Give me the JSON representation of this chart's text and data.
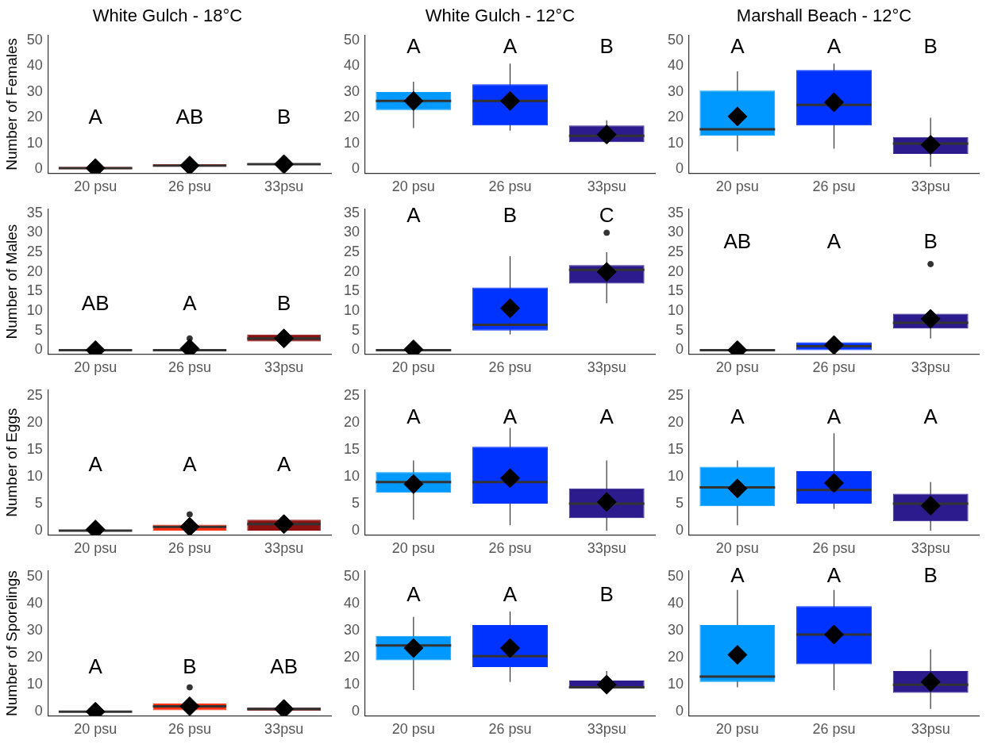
{
  "chart_data": [
    {
      "type": "box",
      "title": "White Gulch - 18°C",
      "ylabel": "Number of Females",
      "categories": [
        "20 psu",
        "26 psu",
        "33psu"
      ],
      "colors": [
        "#ff6a55",
        "#ff3010",
        "#8c1010"
      ],
      "ylim": [
        -1.5,
        52
      ],
      "yticks": [
        0,
        10,
        20,
        30,
        40,
        50
      ],
      "boxes": [
        {
          "low": 0,
          "q1": 0,
          "median": 0.5,
          "q3": 1,
          "high": 1,
          "mean": 0.5
        },
        {
          "low": 0,
          "q1": 1,
          "median": 1.5,
          "q3": 2,
          "high": 2,
          "mean": 1.5
        },
        {
          "low": 1.5,
          "q1": 1.8,
          "median": 2,
          "q3": 2.2,
          "high": 2.5,
          "mean": 2
        }
      ],
      "annotations": [
        "A",
        "AB",
        "B"
      ]
    },
    {
      "type": "box",
      "title": "White Gulch - 12°C",
      "categories": [
        "20 psu",
        "26 psu",
        "33psu"
      ],
      "colors": [
        "#0099ff",
        "#0033ff",
        "#2b1b8c"
      ],
      "ylim": [
        -1.5,
        52
      ],
      "yticks": [
        0,
        10,
        20,
        30,
        40,
        50
      ],
      "boxes": [
        {
          "low": 16,
          "q1": 23,
          "median": 26.5,
          "q3": 30,
          "high": 34,
          "mean": 26.5
        },
        {
          "low": 15,
          "q1": 17,
          "median": 26.5,
          "q3": 33,
          "high": 41,
          "mean": 26.5
        },
        {
          "low": 10,
          "q1": 10.5,
          "median": 13,
          "q3": 17,
          "high": 19,
          "mean": 13.5
        }
      ],
      "annotations": [
        "A",
        "A",
        "B"
      ]
    },
    {
      "type": "box",
      "title": "Marshall Beach - 12°C",
      "categories": [
        "20 psu",
        "26 psu",
        "33psu"
      ],
      "colors": [
        "#0099ff",
        "#0033ff",
        "#2b1b8c"
      ],
      "ylim": [
        -1.5,
        52
      ],
      "yticks": [
        0,
        10,
        20,
        30,
        40,
        50
      ],
      "boxes": [
        {
          "low": 7,
          "q1": 13,
          "median": 15.5,
          "q3": 30.5,
          "high": 38,
          "mean": 20.5
        },
        {
          "low": 8,
          "q1": 17,
          "median": 25,
          "q3": 38.5,
          "high": 41,
          "mean": 26
        },
        {
          "low": 1,
          "q1": 6,
          "median": 10,
          "q3": 12.5,
          "high": 20,
          "mean": 9.5
        }
      ],
      "annotations": [
        "A",
        "A",
        "B"
      ]
    },
    {
      "type": "box",
      "ylabel": "Number of Males",
      "categories": [
        "20 psu",
        "26 psu",
        "33psu"
      ],
      "colors": [
        "#333333",
        "#333333",
        "#8c1010"
      ],
      "ylim": [
        -1,
        36
      ],
      "yticks": [
        0,
        5,
        10,
        15,
        20,
        25,
        30,
        35
      ],
      "boxes": [
        {
          "low": 0,
          "q1": 0,
          "median": 0,
          "q3": 0,
          "high": 0,
          "mean": 0
        },
        {
          "low": 0,
          "q1": 0,
          "median": 0,
          "q3": 0,
          "high": 0,
          "mean": 0.4,
          "outliers": [
            3
          ]
        },
        {
          "low": 2,
          "q1": 2.2,
          "median": 3,
          "q3": 4,
          "high": 4,
          "mean": 3
        }
      ],
      "annotations": [
        "AB",
        "A",
        "B"
      ]
    },
    {
      "type": "box",
      "categories": [
        "20 psu",
        "26 psu",
        "33psu"
      ],
      "colors": [
        "#333333",
        "#0033ff",
        "#2b1b8c"
      ],
      "ylim": [
        -1,
        36
      ],
      "yticks": [
        0,
        5,
        10,
        15,
        20,
        25,
        30,
        35
      ],
      "boxes": [
        {
          "low": 0,
          "q1": 0,
          "median": 0,
          "q3": 0,
          "high": 0,
          "mean": 0.2
        },
        {
          "low": 4,
          "q1": 5,
          "median": 6.5,
          "q3": 16,
          "high": 24,
          "mean": 10.7
        },
        {
          "low": 12,
          "q1": 17,
          "median": 20.5,
          "q3": 21.7,
          "high": 25,
          "mean": 20,
          "outliers": [
            30
          ]
        }
      ],
      "annotations": [
        "A",
        "B",
        "C"
      ]
    },
    {
      "type": "box",
      "categories": [
        "20 psu",
        "26 psu",
        "33psu"
      ],
      "colors": [
        "#333333",
        "#0033ff",
        "#2b1b8c"
      ],
      "ylim": [
        -1,
        36
      ],
      "yticks": [
        0,
        5,
        10,
        15,
        20,
        25,
        30,
        35
      ],
      "boxes": [
        {
          "low": 0,
          "q1": 0,
          "median": 0,
          "q3": 0,
          "high": 0,
          "mean": 0
        },
        {
          "low": 0,
          "q1": 0,
          "median": 1,
          "q3": 2,
          "high": 2,
          "mean": 1.3
        },
        {
          "low": 3,
          "q1": 5.5,
          "median": 7,
          "q3": 9.3,
          "high": 9.3,
          "mean": 8,
          "outliers": [
            22
          ]
        }
      ],
      "annotations": [
        "AB",
        "A",
        "B"
      ]
    },
    {
      "type": "box",
      "ylabel": "Number of Eggs",
      "categories": [
        "20 psu",
        "26 psu",
        "33psu"
      ],
      "colors": [
        "#333333",
        "#ff3010",
        "#8c1010"
      ],
      "ylim": [
        -0.8,
        26
      ],
      "yticks": [
        0,
        5,
        10,
        15,
        20,
        25
      ],
      "boxes": [
        {
          "low": 0,
          "q1": 0,
          "median": 0,
          "q3": 0,
          "high": 0,
          "mean": 0.2
        },
        {
          "low": 0,
          "q1": 0,
          "median": 0.7,
          "q3": 1.1,
          "high": 1.1,
          "mean": 0.7,
          "outliers": [
            3
          ]
        },
        {
          "low": 0,
          "q1": 0,
          "median": 1.2,
          "q3": 2,
          "high": 2,
          "mean": 1.2
        }
      ],
      "annotations": [
        "A",
        "A",
        "A"
      ]
    },
    {
      "type": "box",
      "categories": [
        "20 psu",
        "26 psu",
        "33psu"
      ],
      "colors": [
        "#0099ff",
        "#0033ff",
        "#2b1b8c"
      ],
      "ylim": [
        -0.8,
        26
      ],
      "yticks": [
        0,
        5,
        10,
        15,
        20,
        25
      ],
      "boxes": [
        {
          "low": 2,
          "q1": 7,
          "median": 9,
          "q3": 10.8,
          "high": 13,
          "mean": 8.6
        },
        {
          "low": 1,
          "q1": 5,
          "median": 9,
          "q3": 15.5,
          "high": 19,
          "mean": 9.7
        },
        {
          "low": 0,
          "q1": 2.3,
          "median": 5,
          "q3": 7.8,
          "high": 13,
          "mean": 5.3
        }
      ],
      "annotations": [
        "A",
        "A",
        "A"
      ]
    },
    {
      "type": "box",
      "categories": [
        "20 psu",
        "26 psu",
        "33psu"
      ],
      "colors": [
        "#0099ff",
        "#0033ff",
        "#2b1b8c"
      ],
      "ylim": [
        -0.8,
        26
      ],
      "yticks": [
        0,
        5,
        10,
        15,
        20,
        25
      ],
      "boxes": [
        {
          "low": 1,
          "q1": 4.5,
          "median": 8,
          "q3": 11.8,
          "high": 13,
          "mean": 7.8
        },
        {
          "low": 4,
          "q1": 5,
          "median": 7.5,
          "q3": 11,
          "high": 18,
          "mean": 8.8
        },
        {
          "low": 0,
          "q1": 1.7,
          "median": 5,
          "q3": 6.8,
          "high": 9,
          "mean": 4.6
        }
      ],
      "annotations": [
        "A",
        "A",
        "A"
      ]
    },
    {
      "type": "box",
      "ylabel": "Number of Sporelings",
      "categories": [
        "20 psu",
        "26 psu",
        "33psu"
      ],
      "colors": [
        "#333333",
        "#ff3010",
        "#8c1010"
      ],
      "ylim": [
        -1.5,
        52
      ],
      "yticks": [
        0,
        10,
        20,
        30,
        40,
        50
      ],
      "boxes": [
        {
          "low": 0,
          "q1": 0,
          "median": 0,
          "q3": 0,
          "high": 0,
          "mean": 0
        },
        {
          "low": 0,
          "q1": 0.5,
          "median": 2,
          "q3": 3,
          "high": 3,
          "mean": 2,
          "outliers": [
            9
          ]
        },
        {
          "low": 0,
          "q1": 0.3,
          "median": 1,
          "q3": 1.5,
          "high": 1.5,
          "mean": 1
        }
      ],
      "annotations": [
        "A",
        "B",
        "AB"
      ]
    },
    {
      "type": "box",
      "categories": [
        "20 psu",
        "26 psu",
        "33psu"
      ],
      "colors": [
        "#0099ff",
        "#0033ff",
        "#2b1b8c"
      ],
      "ylim": [
        -1.5,
        52
      ],
      "yticks": [
        0,
        10,
        20,
        30,
        40,
        50
      ],
      "boxes": [
        {
          "low": 8,
          "q1": 19,
          "median": 24.5,
          "q3": 28,
          "high": 35,
          "mean": 23.5
        },
        {
          "low": 11,
          "q1": 16.5,
          "median": 20.5,
          "q3": 32,
          "high": 37,
          "mean": 23.5
        },
        {
          "low": 8,
          "q1": 8.5,
          "median": 9,
          "q3": 11.5,
          "high": 15,
          "mean": 10
        }
      ],
      "annotations": [
        "A",
        "A",
        "B"
      ]
    },
    {
      "type": "box",
      "categories": [
        "20 psu",
        "26 psu",
        "33psu"
      ],
      "colors": [
        "#0099ff",
        "#0033ff",
        "#2b1b8c"
      ],
      "ylim": [
        -1.5,
        52
      ],
      "yticks": [
        0,
        10,
        20,
        30,
        40,
        50
      ],
      "boxes": [
        {
          "low": 9,
          "q1": 11,
          "median": 13,
          "q3": 32,
          "high": 45,
          "mean": 21
        },
        {
          "low": 8,
          "q1": 17.5,
          "median": 28.5,
          "q3": 39,
          "high": 45,
          "mean": 28.5
        },
        {
          "low": 1,
          "q1": 7,
          "median": 10,
          "q3": 15,
          "high": 23,
          "mean": 11
        }
      ],
      "annotations": [
        "A",
        "A",
        "B"
      ]
    }
  ]
}
